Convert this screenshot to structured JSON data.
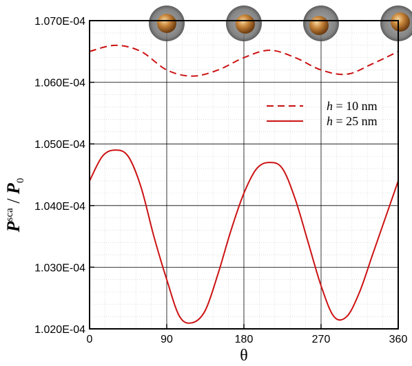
{
  "chart_data": {
    "type": "line",
    "xlabel": "θ",
    "ylabel_main": "P",
    "ylabel_sup": "sca",
    "ylabel_sep": " / ",
    "ylabel_den": "P",
    "ylabel_den_sub": "0",
    "xlim": [
      0,
      360
    ],
    "ylim": [
      0.000102,
      0.000107
    ],
    "x_ticks": [
      0,
      90,
      180,
      270,
      360
    ],
    "x_tick_labels": [
      "0",
      "90",
      "180",
      "270",
      "360"
    ],
    "y_ticks": [
      0.000102,
      0.000103,
      0.000104,
      0.000105,
      0.000106,
      0.000107
    ],
    "y_tick_labels": [
      "1.020E-04",
      "1.030E-04",
      "1.040E-04",
      "1.050E-04",
      "1.060E-04",
      "1.070E-04"
    ],
    "grid": true,
    "legend_position": "top-right",
    "legend": [
      {
        "prefix": "h",
        "suffix": " = 10 nm",
        "style": "dashed"
      },
      {
        "prefix": "h",
        "suffix": " = 25 nm",
        "style": "solid"
      }
    ],
    "series": [
      {
        "name": "h = 10 nm",
        "style": "dashed",
        "color": "#cc1111",
        "x": [
          0,
          30,
          60,
          90,
          120,
          150,
          180,
          210,
          240,
          270,
          300,
          330,
          360
        ],
        "y": [
          0.0001065,
          0.0001066,
          0.0001065,
          0.0001062,
          0.0001061,
          0.0001062,
          0.0001064,
          0.00010652,
          0.0001064,
          0.0001062,
          0.00010613,
          0.0001063,
          0.0001065
        ]
      },
      {
        "name": "h = 25 nm",
        "style": "solid",
        "color": "#cc1111",
        "x": [
          0,
          15,
          30,
          45,
          60,
          75,
          90,
          105,
          120,
          135,
          150,
          165,
          180,
          195,
          210,
          225,
          240,
          255,
          270,
          285,
          300,
          315,
          330,
          345,
          360
        ],
        "y": [
          0.0001044,
          0.0001048,
          0.0001049,
          0.0001048,
          0.0001043,
          0.0001035,
          0.0001028,
          0.0001022,
          0.0001021,
          0.0001023,
          0.0001029,
          0.0001036,
          0.0001042,
          0.0001046,
          0.0001047,
          0.0001046,
          0.0001041,
          0.0001034,
          0.0001027,
          0.0001022,
          0.0001022,
          0.0001026,
          0.0001032,
          0.0001038,
          0.0001044
        ]
      }
    ],
    "annotations": {
      "sphere_icons_at_x": [
        90,
        180,
        270,
        360
      ]
    }
  }
}
